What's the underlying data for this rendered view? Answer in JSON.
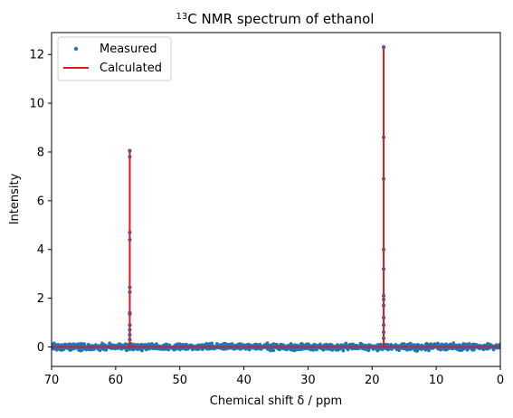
{
  "chart_data": {
    "type": "scatter",
    "title": {
      "prefix": "13",
      "main": "C NMR spectrum of ethanol"
    },
    "xlabel": "Chemical shift δ / ppm",
    "ylabel": "Intensity",
    "xlim": [
      70,
      0
    ],
    "ylim": [
      -0.8,
      12.9
    ],
    "x_reversed": true,
    "x_ticks": [
      70,
      60,
      50,
      40,
      30,
      20,
      10,
      0
    ],
    "y_ticks": [
      0,
      2,
      4,
      6,
      8,
      10,
      12
    ],
    "x_tick_labels": [
      "70",
      "60",
      "50",
      "40",
      "30",
      "20",
      "10",
      "0"
    ],
    "y_tick_labels": [
      "0",
      "2",
      "4",
      "6",
      "8",
      "10",
      "12"
    ],
    "legend_position": "top-left",
    "grid": false,
    "series": [
      {
        "name": "Measured",
        "kind": "scatter",
        "color": "#1f77b4",
        "noise_band": [
          -0.2,
          0.2
        ],
        "peaks": [
          {
            "x": 57.8,
            "points": [
              8.05,
              7.8,
              4.7,
              4.4,
              2.45,
              2.25,
              1.4,
              1.35,
              0.9,
              0.7,
              0.5,
              0.3
            ]
          },
          {
            "x": 18.2,
            "points": [
              12.3,
              8.6,
              6.9,
              4.0,
              3.2,
              2.1,
              1.95,
              1.7,
              1.2,
              0.9,
              0.6,
              0.35
            ]
          }
        ]
      },
      {
        "name": "Calculated",
        "kind": "line",
        "color": "#e8161b",
        "baseline": 0,
        "peaks": [
          {
            "x": 57.8,
            "height": 8.05
          },
          {
            "x": 18.2,
            "height": 12.3
          }
        ]
      }
    ]
  }
}
